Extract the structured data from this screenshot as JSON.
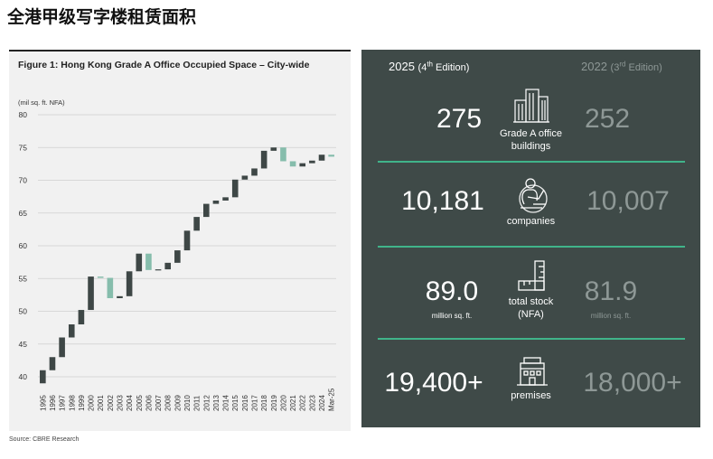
{
  "heading": "全港甲级写字楼租赁面积",
  "chart_data": {
    "type": "waterfall",
    "title": "Figure 1:  Hong Kong Grade A Office Occupied Space – City-wide",
    "ylabel": "(mil sq. ft. NFA)",
    "ylim": [
      40,
      80
    ],
    "yticks": [
      40,
      45,
      50,
      55,
      60,
      65,
      70,
      75,
      80
    ],
    "categories": [
      "1995",
      "1996",
      "1997",
      "1998",
      "1999",
      "2000",
      "2001",
      "2002",
      "2003",
      "2004",
      "2005",
      "2006",
      "2007",
      "2008",
      "2009",
      "2010",
      "2011",
      "2012",
      "2013",
      "2014",
      "2015",
      "2016",
      "2017",
      "2018",
      "2019",
      "2020",
      "2021",
      "2022",
      "2023",
      "2024",
      "Mar-25"
    ],
    "levels": [
      41.0,
      43.0,
      46.0,
      48.0,
      50.2,
      55.3,
      55.1,
      52.0,
      52.3,
      56.1,
      58.8,
      56.3,
      56.4,
      57.4,
      59.3,
      62.3,
      64.4,
      66.4,
      66.9,
      67.4,
      70.1,
      70.7,
      71.8,
      74.5,
      75.0,
      72.9,
      72.1,
      72.6,
      73.0,
      73.9,
      73.6
    ],
    "colors": {
      "increase": "#3e4746",
      "decrease": "#86bdac"
    }
  },
  "source": "Source: CBRE Research",
  "stats": {
    "edition_new": "2025",
    "edition_new_sub_pre": "(4",
    "edition_new_sup": "th",
    "edition_new_sub_post": " Edition)",
    "edition_old": "2022",
    "edition_old_sub_pre": "(3",
    "edition_old_sup": "rd",
    "edition_old_sub_post": " Edition)",
    "rows": [
      {
        "new_value": "275",
        "label_line1": "Grade A office",
        "label_line2": "buildings",
        "old_value": "252"
      },
      {
        "new_value": "10,181",
        "label_line1": "companies",
        "old_value": "10,007"
      },
      {
        "new_value": "89.0",
        "new_unit": "million sq. ft.",
        "label_line1": "total stock",
        "label_line2": "(NFA)",
        "old_value": "81.9",
        "old_unit": "million sq. ft."
      },
      {
        "new_value": "19,400+",
        "label_line1": "premises",
        "old_value": "18,000+"
      }
    ],
    "icons": [
      "office-buildings-icon",
      "person-laptop-icon",
      "ruler-icon",
      "building-icon"
    ],
    "accent_color": "#40b48a"
  }
}
